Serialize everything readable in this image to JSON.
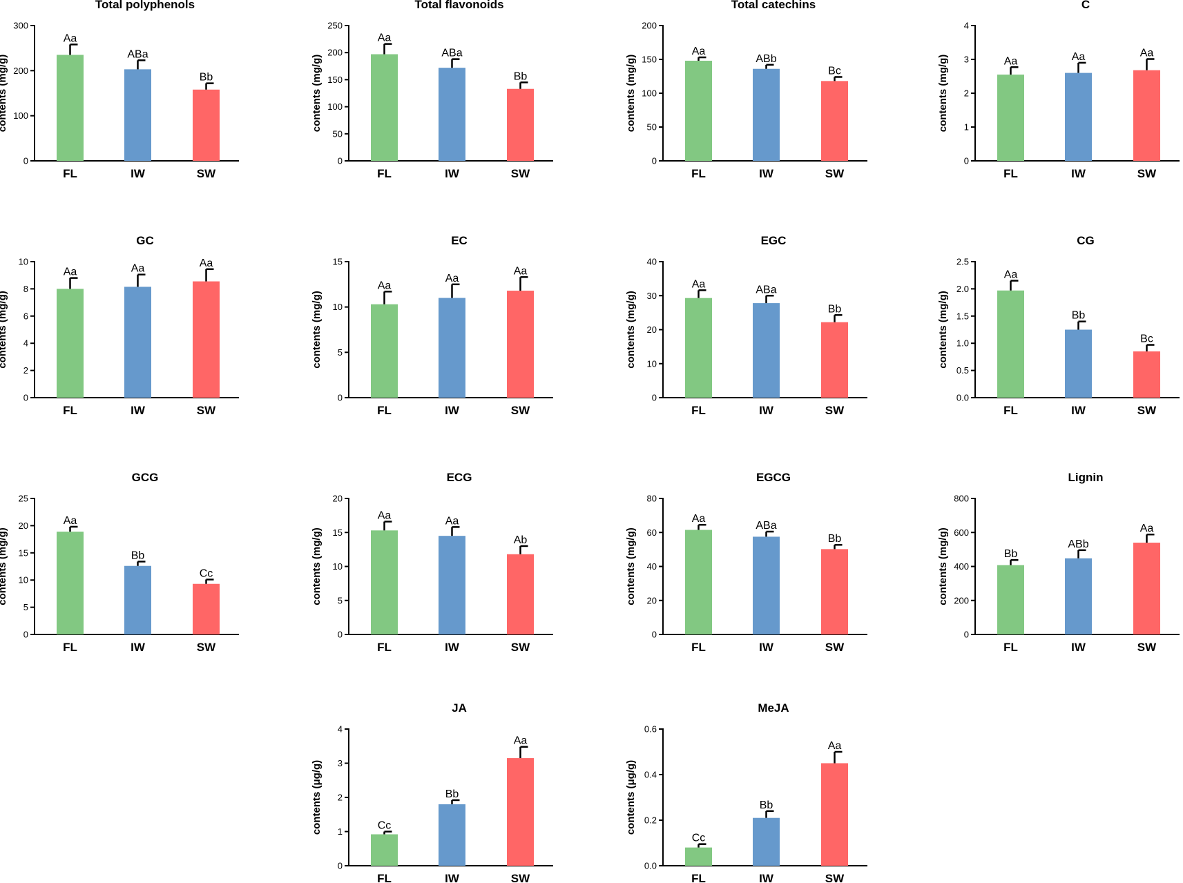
{
  "colors": {
    "FL": "#82c882",
    "IW": "#6699cc",
    "SW": "#ff6666"
  },
  "chart_data": [
    {
      "type": "bar",
      "title": "Total polyphenols",
      "ylabel": "contents (mg/g)",
      "ylim": [
        0,
        300
      ],
      "yticks": [
        0,
        100,
        200,
        300
      ],
      "yticklabels": [
        "0",
        "100",
        "200",
        "300"
      ],
      "categories": [
        "FL",
        "IW",
        "SW"
      ],
      "values": [
        235,
        203,
        158
      ],
      "errors": [
        23,
        20,
        14
      ],
      "labels": [
        "Aa",
        "ABa",
        "Bb"
      ]
    },
    {
      "type": "bar",
      "title": "Total flavonoids",
      "ylabel": "contents (mg/g)",
      "ylim": [
        0,
        250
      ],
      "yticks": [
        0,
        50,
        100,
        150,
        200,
        250
      ],
      "yticklabels": [
        "0",
        "50",
        "100",
        "150",
        "200",
        "250"
      ],
      "categories": [
        "FL",
        "IW",
        "SW"
      ],
      "values": [
        197,
        172,
        133
      ],
      "errors": [
        19,
        16,
        12
      ],
      "labels": [
        "Aa",
        "ABa",
        "Bb"
      ]
    },
    {
      "type": "bar",
      "title": "Total catechins",
      "ylabel": "contents (mg/g)",
      "ylim": [
        0,
        200
      ],
      "yticks": [
        0,
        50,
        100,
        150,
        200
      ],
      "yticklabels": [
        "0",
        "50",
        "100",
        "150",
        "200"
      ],
      "categories": [
        "FL",
        "IW",
        "SW"
      ],
      "values": [
        148,
        136,
        118
      ],
      "errors": [
        5,
        6,
        6
      ],
      "labels": [
        "Aa",
        "ABb",
        "Bc"
      ]
    },
    {
      "type": "bar",
      "title": "C",
      "ylabel": "contents (mg/g)",
      "ylim": [
        0,
        4
      ],
      "yticks": [
        0,
        1,
        2,
        3,
        4
      ],
      "yticklabels": [
        "0",
        "1",
        "2",
        "3",
        "4"
      ],
      "categories": [
        "FL",
        "IW",
        "SW"
      ],
      "values": [
        2.55,
        2.6,
        2.68
      ],
      "errors": [
        0.22,
        0.3,
        0.33
      ],
      "labels": [
        "Aa",
        "Aa",
        "Aa"
      ]
    },
    {
      "type": "bar",
      "title": "GC",
      "ylabel": "contents (mg/g)",
      "ylim": [
        0,
        10
      ],
      "yticks": [
        0,
        2,
        4,
        6,
        8,
        10
      ],
      "yticklabels": [
        "0",
        "2",
        "4",
        "6",
        "8",
        "10"
      ],
      "categories": [
        "FL",
        "IW",
        "SW"
      ],
      "values": [
        8.0,
        8.15,
        8.55
      ],
      "errors": [
        0.8,
        0.9,
        0.9
      ],
      "labels": [
        "Aa",
        "Aa",
        "Aa"
      ]
    },
    {
      "type": "bar",
      "title": "EC",
      "ylabel": "contents (mg/g)",
      "ylim": [
        0,
        15
      ],
      "yticks": [
        0,
        5,
        10,
        15
      ],
      "yticklabels": [
        "0",
        "5",
        "10",
        "15"
      ],
      "categories": [
        "FL",
        "IW",
        "SW"
      ],
      "values": [
        10.3,
        11.0,
        11.8
      ],
      "errors": [
        1.4,
        1.5,
        1.5
      ],
      "labels": [
        "Aa",
        "Aa",
        "Aa"
      ]
    },
    {
      "type": "bar",
      "title": "EGC",
      "ylabel": "contents (mg/g)",
      "ylim": [
        0,
        40
      ],
      "yticks": [
        0,
        10,
        20,
        30,
        40
      ],
      "yticklabels": [
        "0",
        "10",
        "20",
        "30",
        "40"
      ],
      "categories": [
        "FL",
        "IW",
        "SW"
      ],
      "values": [
        29.3,
        27.8,
        22.2
      ],
      "errors": [
        2.3,
        2.2,
        2.1
      ],
      "labels": [
        "Aa",
        "ABa",
        "Bb"
      ]
    },
    {
      "type": "bar",
      "title": "CG",
      "ylabel": "contents (mg/g)",
      "ylim": [
        0,
        2.5
      ],
      "yticks": [
        0,
        0.5,
        1.0,
        1.5,
        2.0,
        2.5
      ],
      "yticklabels": [
        "0.0",
        "0.5",
        "1.0",
        "1.5",
        "2.0",
        "2.5"
      ],
      "categories": [
        "FL",
        "IW",
        "SW"
      ],
      "values": [
        1.97,
        1.25,
        0.85
      ],
      "errors": [
        0.18,
        0.15,
        0.12
      ],
      "labels": [
        "Aa",
        "Bb",
        "Bc"
      ]
    },
    {
      "type": "bar",
      "title": "GCG",
      "ylabel": "contents (mg/g)",
      "ylim": [
        0,
        25
      ],
      "yticks": [
        0,
        5,
        10,
        15,
        20,
        25
      ],
      "yticklabels": [
        "0",
        "5",
        "10",
        "15",
        "20",
        "25"
      ],
      "categories": [
        "FL",
        "IW",
        "SW"
      ],
      "values": [
        18.9,
        12.6,
        9.3
      ],
      "errors": [
        0.9,
        0.8,
        0.8
      ],
      "labels": [
        "Aa",
        "Bb",
        "Cc"
      ]
    },
    {
      "type": "bar",
      "title": "ECG",
      "ylabel": "contents (mg/g)",
      "ylim": [
        0,
        20
      ],
      "yticks": [
        0,
        5,
        10,
        15,
        20
      ],
      "yticklabels": [
        "0",
        "5",
        "10",
        "15",
        "20"
      ],
      "categories": [
        "FL",
        "IW",
        "SW"
      ],
      "values": [
        15.3,
        14.5,
        11.8
      ],
      "errors": [
        1.3,
        1.3,
        1.2
      ],
      "labels": [
        "Aa",
        "Aa",
        "Ab"
      ]
    },
    {
      "type": "bar",
      "title": "EGCG",
      "ylabel": "contents (mg/g)",
      "ylim": [
        0,
        80
      ],
      "yticks": [
        0,
        20,
        40,
        60,
        80
      ],
      "yticklabels": [
        "0",
        "20",
        "40",
        "60",
        "80"
      ],
      "categories": [
        "FL",
        "IW",
        "SW"
      ],
      "values": [
        61.5,
        57.5,
        50.2
      ],
      "errors": [
        3.0,
        3.0,
        2.5
      ],
      "labels": [
        "Aa",
        "ABa",
        "Bb"
      ]
    },
    {
      "type": "bar",
      "title": "Lignin",
      "ylabel": "contents (mg/g)",
      "ylim": [
        0,
        800
      ],
      "yticks": [
        0,
        200,
        400,
        600,
        800
      ],
      "yticklabels": [
        "0",
        "200",
        "400",
        "600",
        "800"
      ],
      "categories": [
        "FL",
        "IW",
        "SW"
      ],
      "values": [
        408,
        448,
        540
      ],
      "errors": [
        30,
        48,
        48
      ],
      "labels": [
        "Bb",
        "ABb",
        "Aa"
      ]
    },
    {
      "type": "bar",
      "title": "JA",
      "ylabel": "contents (μg/g)",
      "ylim": [
        0,
        4
      ],
      "yticks": [
        0,
        1,
        2,
        3,
        4
      ],
      "yticklabels": [
        "0",
        "1",
        "2",
        "3",
        "4"
      ],
      "categories": [
        "FL",
        "IW",
        "SW"
      ],
      "values": [
        0.92,
        1.8,
        3.15
      ],
      "errors": [
        0.08,
        0.12,
        0.33
      ],
      "labels": [
        "Cc",
        "Bb",
        "Aa"
      ]
    },
    {
      "type": "bar",
      "title": "MeJA",
      "ylabel": "contents (μg/g)",
      "ylim": [
        0,
        0.6
      ],
      "yticks": [
        0,
        0.2,
        0.4,
        0.6
      ],
      "yticklabels": [
        "0.0",
        "0.2",
        "0.4",
        "0.6"
      ],
      "categories": [
        "FL",
        "IW",
        "SW"
      ],
      "values": [
        0.08,
        0.21,
        0.45
      ],
      "errors": [
        0.015,
        0.03,
        0.05
      ],
      "labels": [
        "Cc",
        "Bb",
        "Aa"
      ]
    }
  ]
}
